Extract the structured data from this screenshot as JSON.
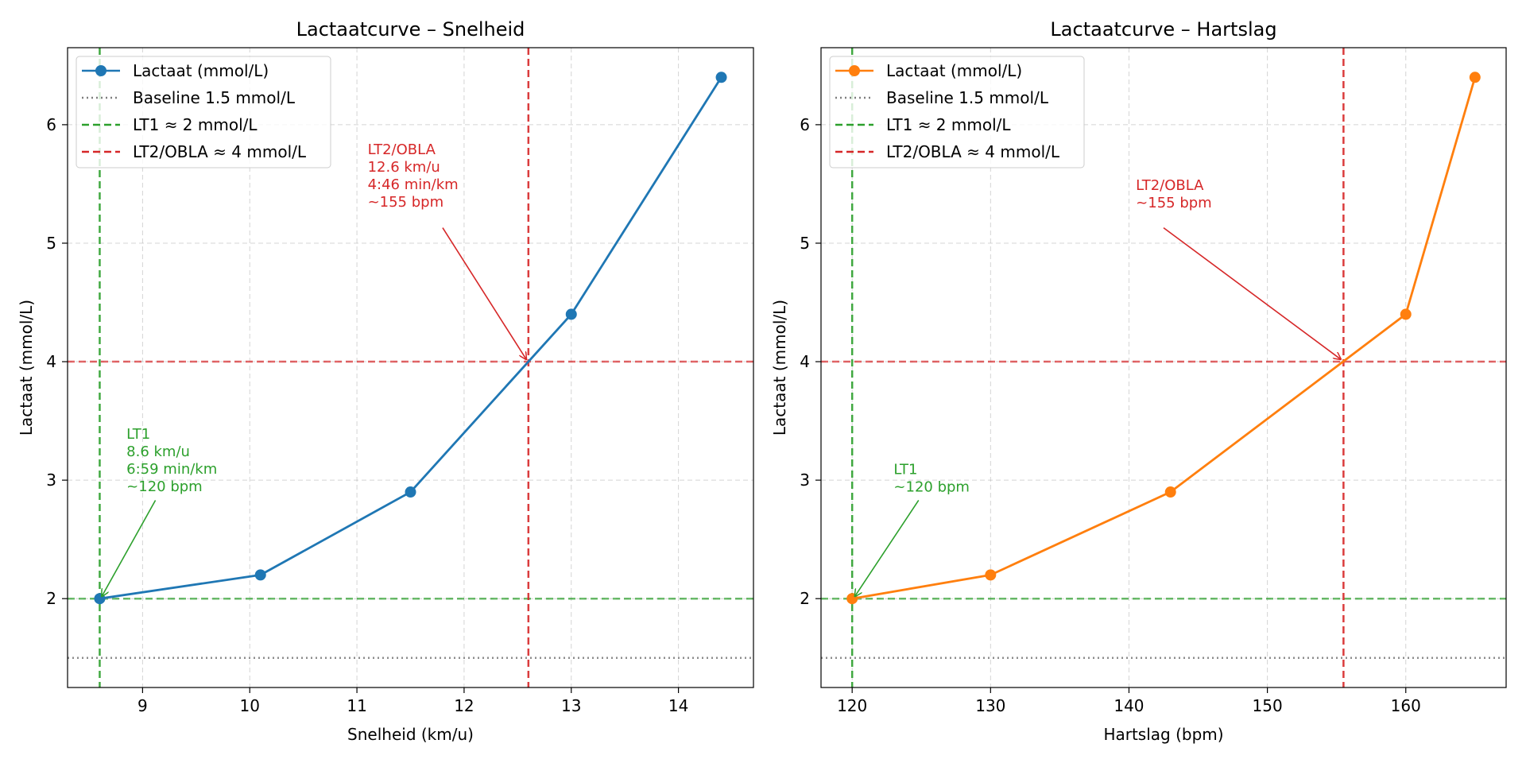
{
  "chart_data": [
    {
      "type": "line",
      "title": "Lactaatcurve – Snelheid",
      "xlabel": "Snelheid (km/u)",
      "ylabel": "Lactaat (mmol/L)",
      "xlim": [
        8.3,
        14.7
      ],
      "ylim": [
        1.25,
        6.65
      ],
      "xticks": [
        9,
        10,
        11,
        12,
        13,
        14
      ],
      "xtick_labels": [
        "9",
        "10",
        "11",
        "12",
        "13",
        "14"
      ],
      "yticks": [
        2,
        3,
        4,
        5,
        6
      ],
      "ytick_labels": [
        "2",
        "3",
        "4",
        "5",
        "6"
      ],
      "grid": true,
      "legend_position": "top-left",
      "series": [
        {
          "name": "Lactaat (mmol/L)",
          "color": "#1f77b4",
          "marker": "circle",
          "x": [
            8.6,
            10.1,
            11.5,
            13.0,
            14.4
          ],
          "y": [
            2.0,
            2.2,
            2.9,
            4.4,
            6.4
          ]
        }
      ],
      "reference_lines": [
        {
          "name": "Baseline 1.5 mmol/L",
          "orientation": "horizontal",
          "value": 1.5,
          "color": "#7f7f7f",
          "style": "dotted"
        },
        {
          "name": "LT1 ≈ 2 mmol/L",
          "orientation": "horizontal",
          "value": 2.0,
          "color": "#2ca02c",
          "style": "dashed"
        },
        {
          "name": "LT2/OBLA ≈ 4 mmol/L",
          "orientation": "horizontal",
          "value": 4.0,
          "color": "#d62728",
          "style": "dashed"
        },
        {
          "name": "LT1",
          "orientation": "vertical",
          "value": 8.6,
          "color": "#2ca02c",
          "style": "dashed"
        },
        {
          "name": "LT2",
          "orientation": "vertical",
          "value": 12.6,
          "color": "#d62728",
          "style": "dashed"
        }
      ],
      "annotations": [
        {
          "lines": [
            "LT1",
            "8.6 km/u",
            "6:59 min/km",
            "~120 bpm"
          ],
          "color": "#2ca02c",
          "text_at": [
            8.85,
            3.35
          ],
          "arrow_from": [
            9.12,
            2.83
          ],
          "arrow_to": [
            8.62,
            2.02
          ]
        },
        {
          "lines": [
            "LT2/OBLA",
            "12.6 km/u",
            "4:46 min/km",
            "~155 bpm"
          ],
          "color": "#d62728",
          "text_at": [
            11.1,
            5.75
          ],
          "arrow_from": [
            11.8,
            5.13
          ],
          "arrow_to": [
            12.58,
            4.02
          ]
        }
      ]
    },
    {
      "type": "line",
      "title": "Lactaatcurve – Hartslag",
      "xlabel": "Hartslag (bpm)",
      "ylabel": "Lactaat (mmol/L)",
      "xlim": [
        117.75,
        167.25
      ],
      "ylim": [
        1.25,
        6.65
      ],
      "xticks": [
        120,
        130,
        140,
        150,
        160
      ],
      "xtick_labels": [
        "120",
        "130",
        "140",
        "150",
        "160"
      ],
      "yticks": [
        2,
        3,
        4,
        5,
        6
      ],
      "ytick_labels": [
        "2",
        "3",
        "4",
        "5",
        "6"
      ],
      "grid": true,
      "legend_position": "top-left",
      "series": [
        {
          "name": "Lactaat (mmol/L)",
          "color": "#ff7f0e",
          "marker": "circle",
          "x": [
            120,
            130,
            143,
            160,
            165
          ],
          "y": [
            2.0,
            2.2,
            2.9,
            4.4,
            6.4
          ]
        }
      ],
      "reference_lines": [
        {
          "name": "Baseline 1.5 mmol/L",
          "orientation": "horizontal",
          "value": 1.5,
          "color": "#7f7f7f",
          "style": "dotted"
        },
        {
          "name": "LT1 ≈ 2 mmol/L",
          "orientation": "horizontal",
          "value": 2.0,
          "color": "#2ca02c",
          "style": "dashed"
        },
        {
          "name": "LT2/OBLA ≈ 4 mmol/L",
          "orientation": "horizontal",
          "value": 4.0,
          "color": "#d62728",
          "style": "dashed"
        },
        {
          "name": "LT1",
          "orientation": "vertical",
          "value": 120,
          "color": "#2ca02c",
          "style": "dashed"
        },
        {
          "name": "LT2",
          "orientation": "vertical",
          "value": 155.5,
          "color": "#d62728",
          "style": "dashed"
        }
      ],
      "annotations": [
        {
          "lines": [
            "LT1",
            "~120 bpm"
          ],
          "color": "#2ca02c",
          "text_at": [
            123,
            3.05
          ],
          "arrow_from": [
            124.8,
            2.83
          ],
          "arrow_to": [
            120.2,
            2.02
          ]
        },
        {
          "lines": [
            "LT2/OBLA",
            "~155 bpm"
          ],
          "color": "#d62728",
          "text_at": [
            140.5,
            5.45
          ],
          "arrow_from": [
            142.5,
            5.13
          ],
          "arrow_to": [
            155.3,
            4.02
          ]
        }
      ]
    }
  ]
}
